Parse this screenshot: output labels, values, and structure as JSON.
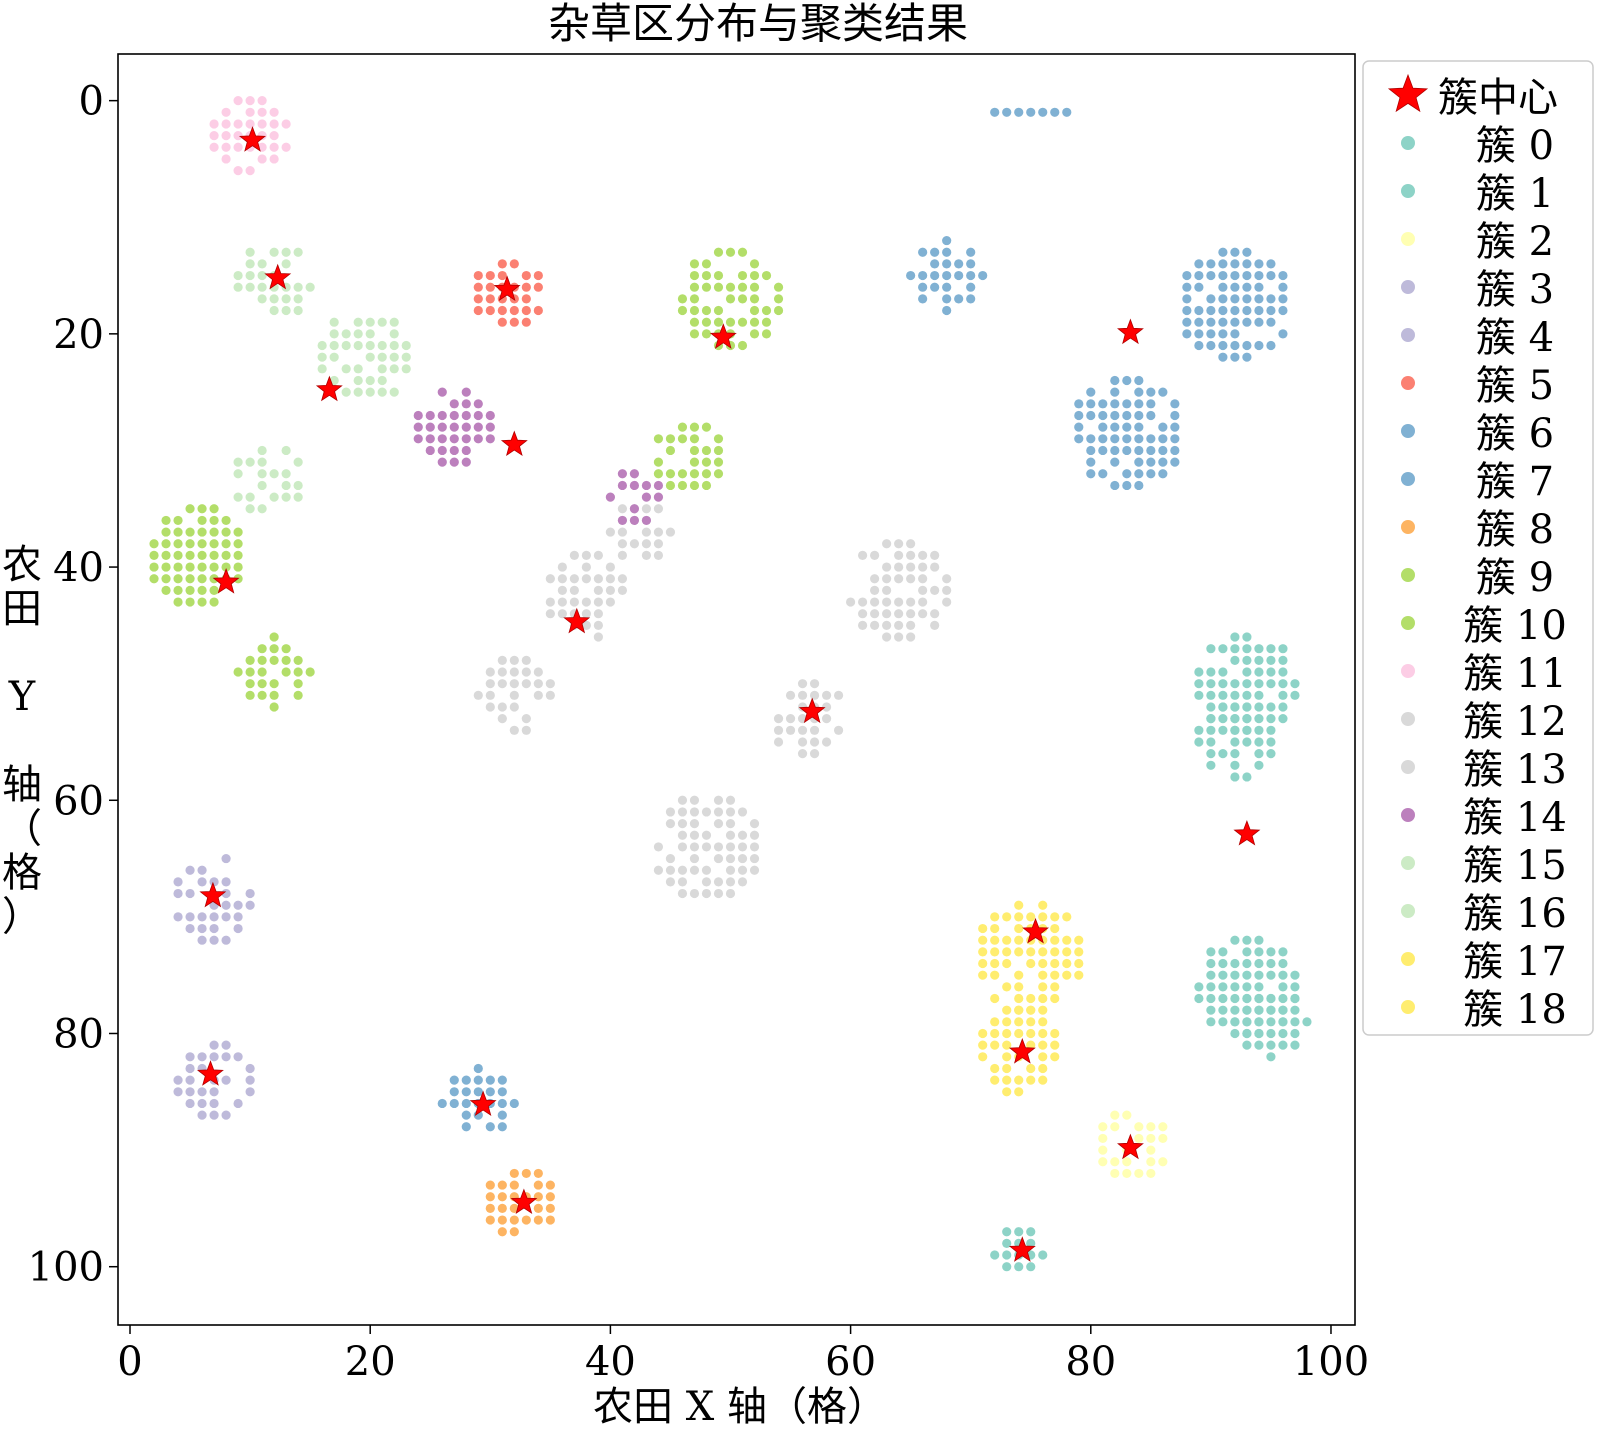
{
  "chart_data": {
    "type": "scatter",
    "title": "杂草区分布与聚类结果",
    "xlabel": "农田 X 轴（格）",
    "ylabel": "农田 Y 轴（格）",
    "xlim": [
      -1,
      102
    ],
    "ylim": [
      105,
      -4
    ],
    "y_inverted": true,
    "xticks": [
      0,
      20,
      40,
      60,
      80,
      100
    ],
    "yticks": [
      0,
      20,
      40,
      60,
      80,
      100
    ],
    "grid": false,
    "legend_position": "upper-right-outside",
    "centers_label": "簇中心",
    "centers": [
      [
        10.2,
        3.4
      ],
      [
        12.3,
        15.2
      ],
      [
        16.6,
        24.8
      ],
      [
        31.4,
        16.2
      ],
      [
        32.0,
        29.5
      ],
      [
        49.4,
        20.3
      ],
      [
        83.3,
        19.9
      ],
      [
        8.0,
        41.3
      ],
      [
        37.2,
        44.7
      ],
      [
        56.8,
        52.4
      ],
      [
        6.9,
        68.2
      ],
      [
        93.0,
        62.9
      ],
      [
        75.4,
        71.3
      ],
      [
        74.3,
        81.6
      ],
      [
        6.7,
        83.5
      ],
      [
        29.4,
        86.1
      ],
      [
        83.3,
        89.8
      ],
      [
        32.8,
        94.5
      ],
      [
        74.3,
        98.6
      ]
    ],
    "clusters": [
      {
        "name": "簇 0",
        "color": "#8dd3c7",
        "regions": [
          {
            "c": [
              74,
              98.5
            ],
            "r": 2.3,
            "keep": 0.85
          }
        ]
      },
      {
        "name": "簇 1",
        "color": "#8dd3c7",
        "regions": [
          {
            "c": [
              93,
              50
            ],
            "r": 4.3,
            "keep": 0.85
          },
          {
            "c": [
              92,
              55
            ],
            "r": 3.5,
            "keep": 0.8
          },
          {
            "c": [
              93,
              76
            ],
            "r": 4.3,
            "keep": 0.9
          },
          {
            "c": [
              95,
              79
            ],
            "r": 3.0,
            "keep": 0.9
          }
        ]
      },
      {
        "name": "簇 2",
        "color": "#ffffb3",
        "regions": [
          {
            "c": [
              83.5,
              89.5
            ],
            "r": 3.3,
            "keep": 0.8
          }
        ]
      },
      {
        "name": "簇 3",
        "color": "#bebada",
        "regions": [
          {
            "c": [
              7,
              68.5
            ],
            "r": 3.8,
            "keep": 0.7
          }
        ]
      },
      {
        "name": "簇 4",
        "color": "#bebada",
        "regions": [
          {
            "c": [
              7,
              84
            ],
            "r": 3.3,
            "keep": 0.7
          }
        ]
      },
      {
        "name": "簇 5",
        "color": "#fb8072",
        "regions": [
          {
            "c": [
              31.5,
              16.5
            ],
            "r": 3.3,
            "keep": 0.95
          }
        ]
      },
      {
        "name": "簇 6",
        "color": "#80b1d3",
        "regions": [
          {
            "c": [
              75,
              1
            ],
            "r": 2.6,
            "keep": 1.0,
            "row": true
          },
          {
            "c": [
              68,
              15
            ],
            "r": 3.0,
            "keep": 0.8
          },
          {
            "c": [
              92,
              17.5
            ],
            "r": 4.8,
            "keep": 0.9
          },
          {
            "c": [
              83,
              28.5
            ],
            "r": 4.8,
            "keep": 0.8
          }
        ]
      },
      {
        "name": "簇 7",
        "color": "#80b1d3",
        "regions": [
          {
            "c": [
              29,
              86
            ],
            "r": 3.0,
            "keep": 0.85
          }
        ]
      },
      {
        "name": "簇 8",
        "color": "#fdb462",
        "regions": [
          {
            "c": [
              32.5,
              94.5
            ],
            "r": 3.2,
            "keep": 0.85
          }
        ]
      },
      {
        "name": "簇 9",
        "color": "#b3de69",
        "regions": [
          {
            "c": [
              50,
              17
            ],
            "r": 4.3,
            "keep": 0.85
          },
          {
            "c": [
              46.5,
              30.5
            ],
            "r": 3.3,
            "keep": 0.8
          },
          {
            "c": [
              5.5,
              39
            ],
            "r": 4.3,
            "keep": 0.9
          }
        ]
      },
      {
        "name": "簇 10",
        "color": "#b3de69",
        "regions": [
          {
            "c": [
              12,
              49
            ],
            "r": 3.0,
            "keep": 0.8
          }
        ]
      },
      {
        "name": "簇 11",
        "color": "#fccde5",
        "regions": [
          {
            "c": [
              10,
              3
            ],
            "r": 3.3,
            "keep": 0.75
          }
        ]
      },
      {
        "name": "簇 12",
        "color": "#d9d9d9",
        "regions": [
          {
            "c": [
              38,
              42.5
            ],
            "r": 3.8,
            "keep": 0.75
          },
          {
            "c": [
              42.5,
              37
            ],
            "r": 2.5,
            "keep": 0.8
          },
          {
            "c": [
              32,
              51
            ],
            "r": 3.3,
            "keep": 0.75
          },
          {
            "c": [
              64,
              42
            ],
            "r": 4.3,
            "keep": 0.75
          },
          {
            "c": [
              56.5,
              53
            ],
            "r": 3.3,
            "keep": 0.75
          },
          {
            "c": [
              48,
              64
            ],
            "r": 4.8,
            "keep": 0.8
          }
        ]
      },
      {
        "name": "簇 13",
        "color": "#d9d9d9",
        "regions": []
      },
      {
        "name": "簇 14",
        "color": "#bc80bd",
        "regions": [
          {
            "c": [
              27,
              28
            ],
            "r": 3.3,
            "keep": 0.9
          },
          {
            "c": [
              42,
              34
            ],
            "r": 2.5,
            "keep": 0.7
          }
        ]
      },
      {
        "name": "簇 15",
        "color": "#ccebc5",
        "regions": [
          {
            "c": [
              12,
              15.5
            ],
            "r": 3.3,
            "keep": 0.7
          },
          {
            "c": [
              19.5,
              22
            ],
            "r": 4.0,
            "keep": 0.8
          },
          {
            "c": [
              11.5,
              32.5
            ],
            "r": 3.3,
            "keep": 0.7
          }
        ]
      },
      {
        "name": "簇 16",
        "color": "#ccebc5",
        "regions": []
      },
      {
        "name": "簇 17",
        "color": "#ffed6f",
        "regions": [
          {
            "c": [
              75,
              73.5
            ],
            "r": 4.8,
            "keep": 0.85
          },
          {
            "c": [
              74,
              81.5
            ],
            "r": 3.8,
            "keep": 0.8
          }
        ]
      },
      {
        "name": "簇 18",
        "color": "#ffed6f",
        "regions": []
      }
    ]
  }
}
